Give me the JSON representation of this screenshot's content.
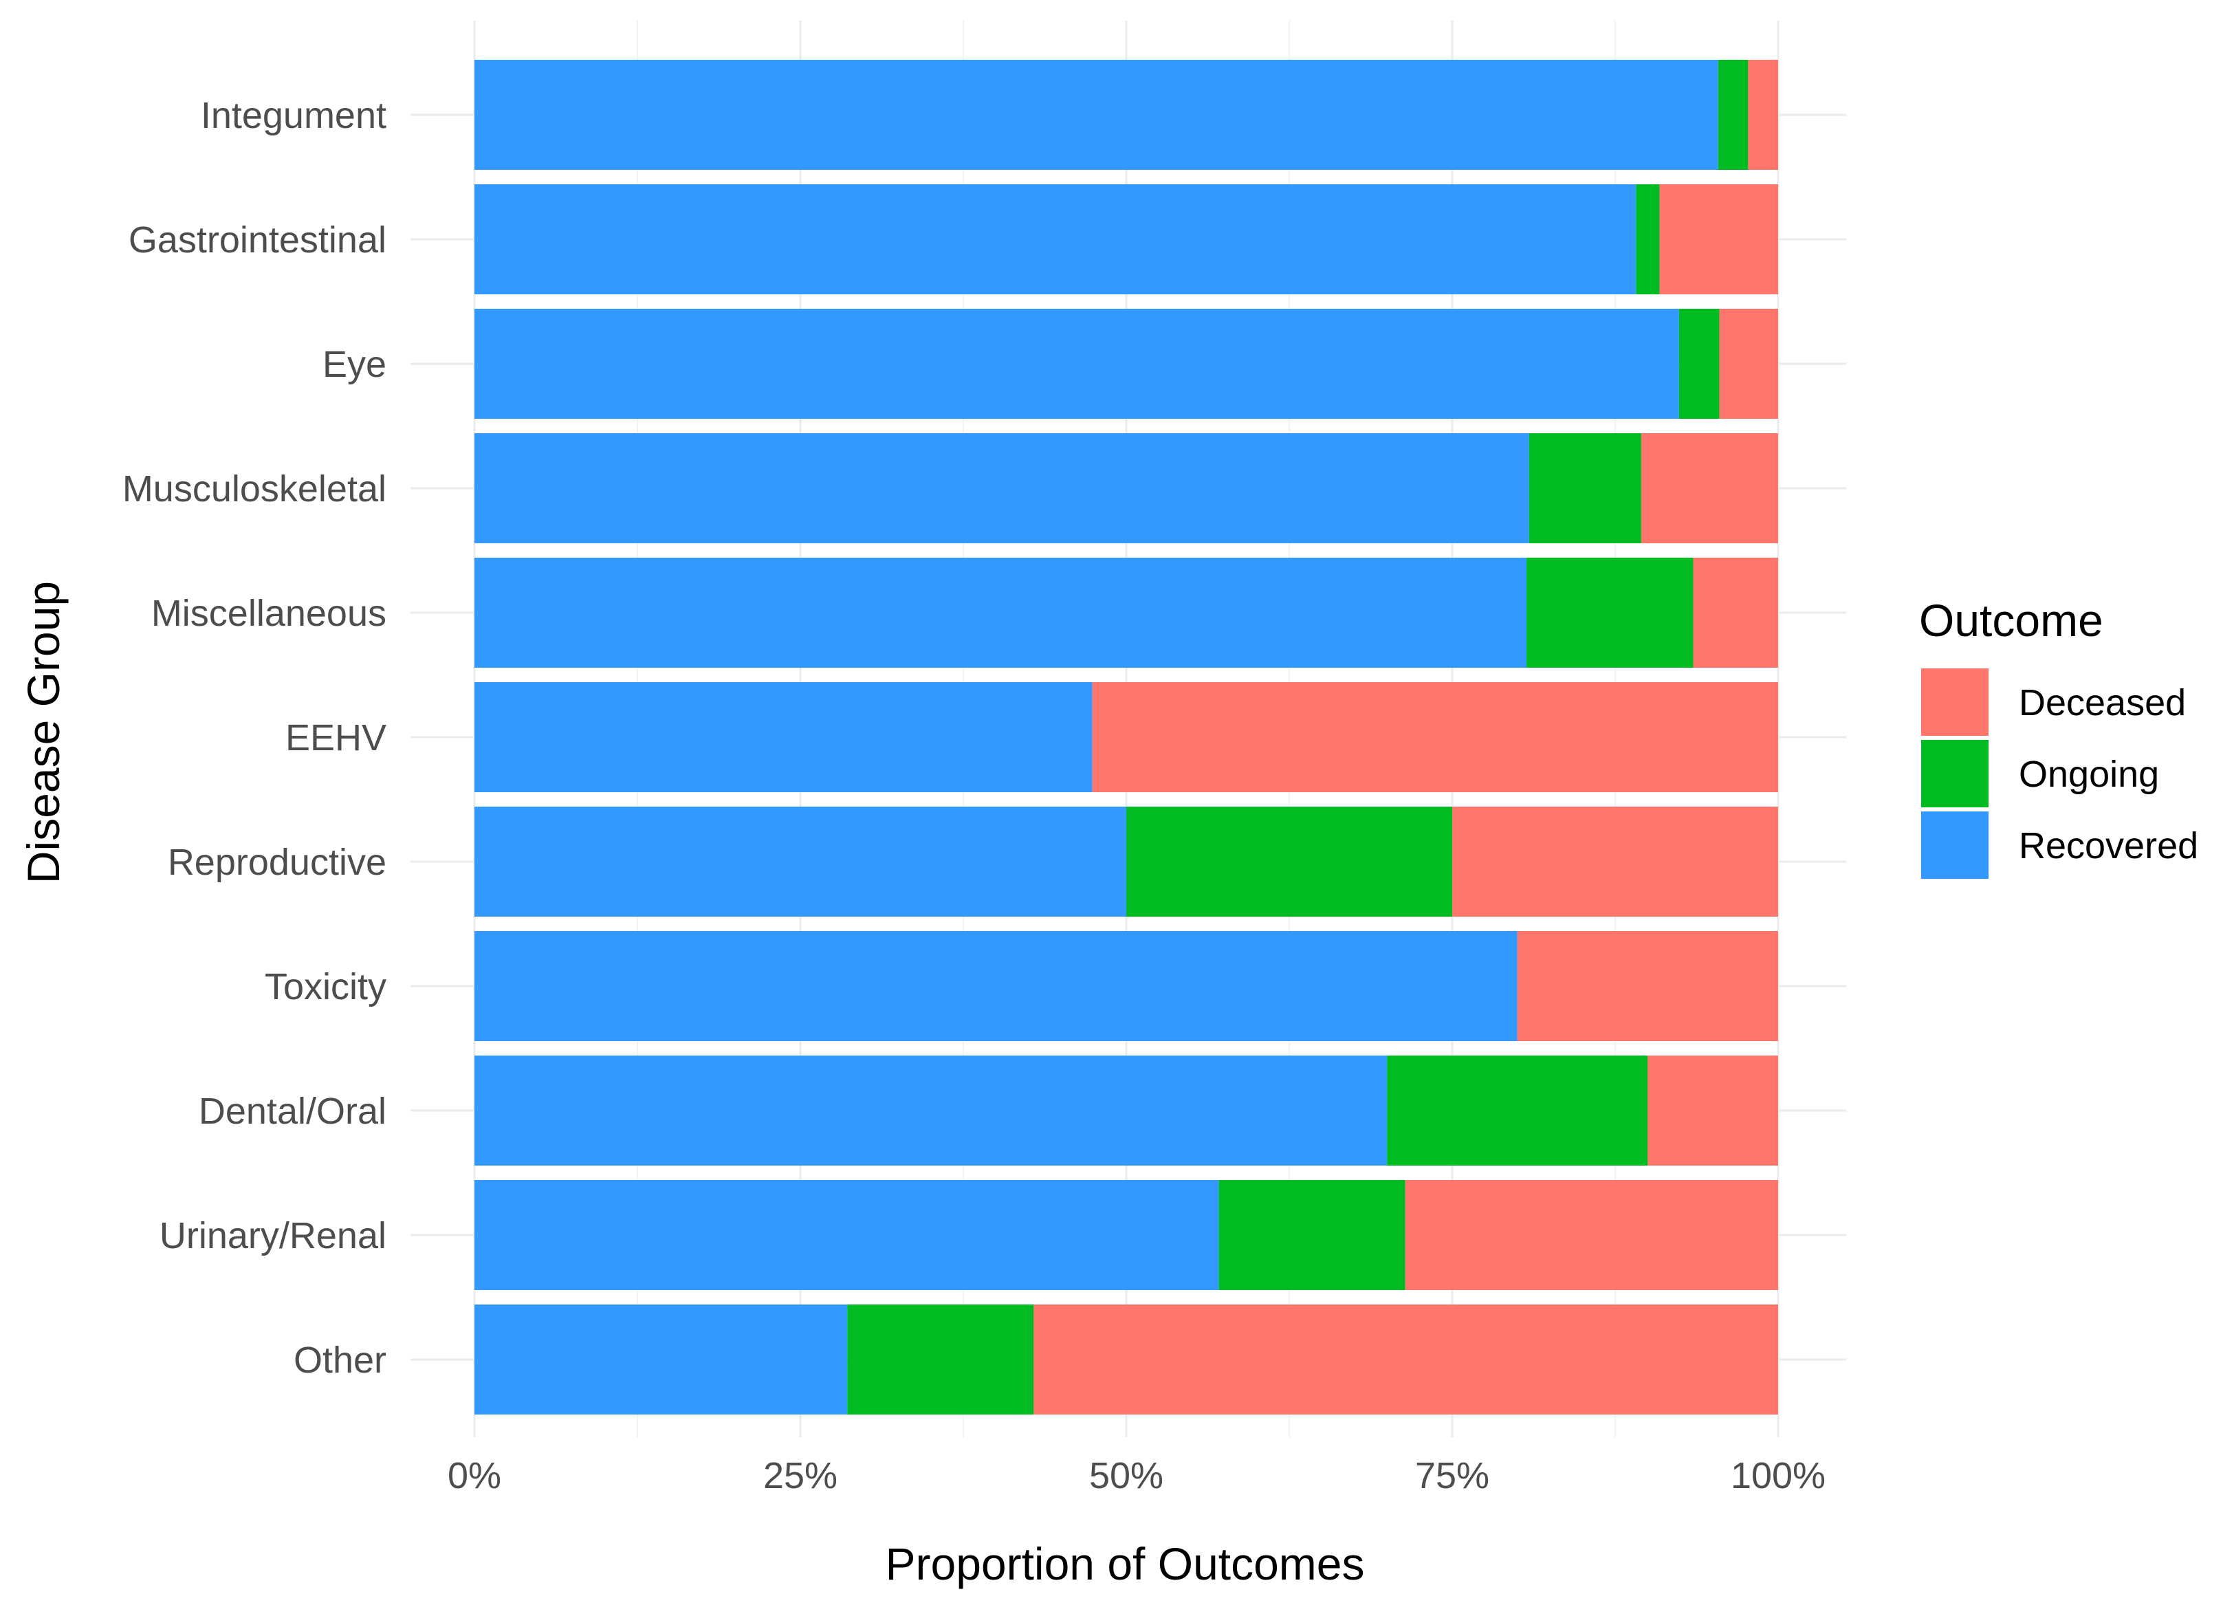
{
  "chart_data": {
    "type": "bar",
    "orientation": "horizontal",
    "stacked": true,
    "normalized": true,
    "xlabel": "Proportion of Outcomes",
    "ylabel": "Disease Group",
    "xlim": [
      0,
      1
    ],
    "x_ticks": [
      0,
      0.25,
      0.5,
      0.75,
      1
    ],
    "x_tick_labels": [
      "0%",
      "25%",
      "50%",
      "75%",
      "100%"
    ],
    "grid": true,
    "categories": [
      "Integument",
      "Gastrointestinal",
      "Eye",
      "Musculoskeletal",
      "Miscellaneous",
      "EEHV",
      "Reproductive",
      "Toxicity",
      "Dental/Oral",
      "Urinary/Renal",
      "Other"
    ],
    "series": [
      {
        "name": "Recovered",
        "color": "#3399ff",
        "values": [
          0.954,
          0.891,
          0.924,
          0.809,
          0.807,
          0.474,
          0.5,
          0.8,
          0.7,
          0.571,
          0.286
        ]
      },
      {
        "name": "Ongoing",
        "color": "#00bb22",
        "values": [
          0.023,
          0.018,
          0.031,
          0.086,
          0.128,
          0.0,
          0.25,
          0.0,
          0.2,
          0.143,
          0.143
        ]
      },
      {
        "name": "Deceased",
        "color": "#ff766c",
        "values": [
          0.023,
          0.091,
          0.045,
          0.105,
          0.065,
          0.526,
          0.25,
          0.2,
          0.1,
          0.286,
          0.571
        ]
      }
    ],
    "legend": {
      "title": "Outcome",
      "position": "right",
      "entries": [
        "Deceased",
        "Ongoing",
        "Recovered"
      ]
    }
  }
}
